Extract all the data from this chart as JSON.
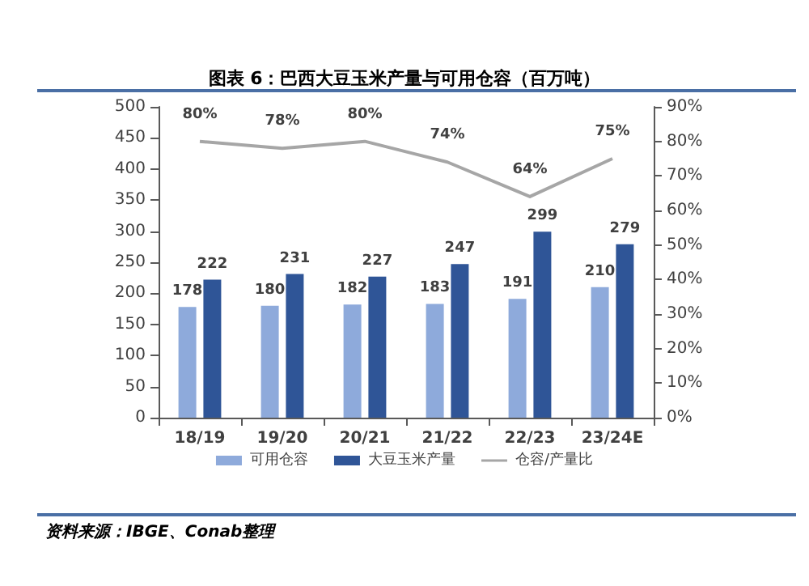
{
  "chart_data": {
    "type": "bar",
    "title": "图表 6：巴西大豆玉米产量与可用仓容（百万吨）",
    "categories": [
      "18/19",
      "19/20",
      "20/21",
      "21/22",
      "22/23",
      "23/24E"
    ],
    "series": [
      {
        "name": "可用仓容",
        "color": "#8eaadb",
        "values": [
          178,
          180,
          182,
          183,
          191,
          210
        ]
      },
      {
        "name": "大豆玉米产量",
        "color": "#2f5597",
        "values": [
          222,
          231,
          227,
          247,
          299,
          279
        ]
      },
      {
        "name": "仓容/产量比",
        "type": "line",
        "axis": "y2",
        "color": "#a6a6a6",
        "values": [
          80,
          78,
          80,
          74,
          64,
          75
        ],
        "value_labels": [
          "80%",
          "78%",
          "80%",
          "74%",
          "64%",
          "75%"
        ]
      }
    ],
    "ylim": [
      0,
      500
    ],
    "yticks": [
      0,
      50,
      100,
      150,
      200,
      250,
      300,
      350,
      400,
      450,
      500
    ],
    "y2lim": [
      0,
      90
    ],
    "y2ticks": [
      {
        "value": 0,
        "label": "0%"
      },
      {
        "value": 10,
        "label": "10%"
      },
      {
        "value": 20,
        "label": "20%"
      },
      {
        "value": 30,
        "label": "30%"
      },
      {
        "value": 40,
        "label": "40%"
      },
      {
        "value": 50,
        "label": "50%"
      },
      {
        "value": 60,
        "label": "60%"
      },
      {
        "value": 70,
        "label": "70%"
      },
      {
        "value": 80,
        "label": "80%"
      },
      {
        "value": 90,
        "label": "90%"
      }
    ],
    "data_labels": true,
    "grid": false,
    "legend": "bottom",
    "marker": "none",
    "annotations": [
      "资料来源：IBGE、Conab整理"
    ]
  }
}
